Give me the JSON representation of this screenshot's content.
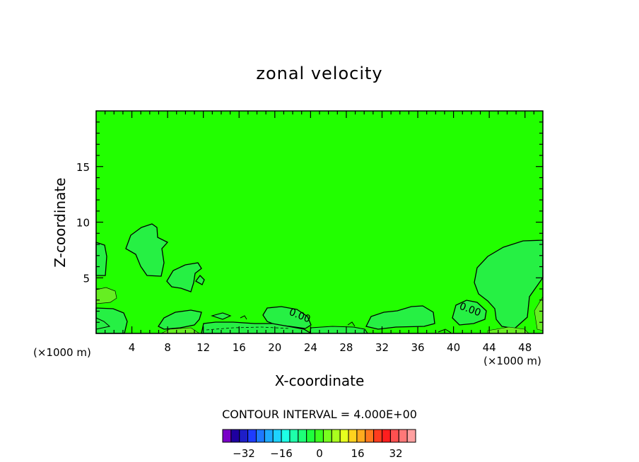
{
  "chart_data": {
    "type": "contour",
    "title": "zonal velocity",
    "xlabel": "X-coordinate",
    "ylabel": "Z-coordinate",
    "x_unit_label": "(×1000 m)",
    "x_ticks": [
      4,
      8,
      12,
      16,
      20,
      24,
      28,
      32,
      36,
      40,
      44,
      48
    ],
    "y_ticks": [
      5,
      10,
      15
    ],
    "xlim": [
      0,
      50
    ],
    "ylim": [
      0,
      20
    ],
    "contour_interval_text": "CONTOUR INTERVAL = 4.000E+00",
    "contour_labels": [
      "0.00",
      "0.00",
      "0.00"
    ],
    "background_level_color": "#22ff00",
    "colorbar": {
      "colors": [
        "#7a00c8",
        "#1e00a0",
        "#1e1ec8",
        "#1e3cff",
        "#1e78ff",
        "#1eaaff",
        "#1ed2ff",
        "#1effe6",
        "#1effaa",
        "#1eff78",
        "#1eff3c",
        "#3cff1e",
        "#78ff1e",
        "#aaff1e",
        "#e6ff1e",
        "#ffd21e",
        "#ffaa1e",
        "#ff781e",
        "#ff3c1e",
        "#ff1e1e",
        "#ff5050",
        "#ff7878",
        "#ffa0a0"
      ],
      "tick_labels": [
        "−32",
        "−16",
        "0",
        "16",
        "32"
      ]
    },
    "regions": {
      "upper_left_blob_color": "#26f044",
      "right_dome_color": "#26f044",
      "surface_patch_color": "#26f044",
      "light_patch_color": "#66ee22"
    }
  }
}
